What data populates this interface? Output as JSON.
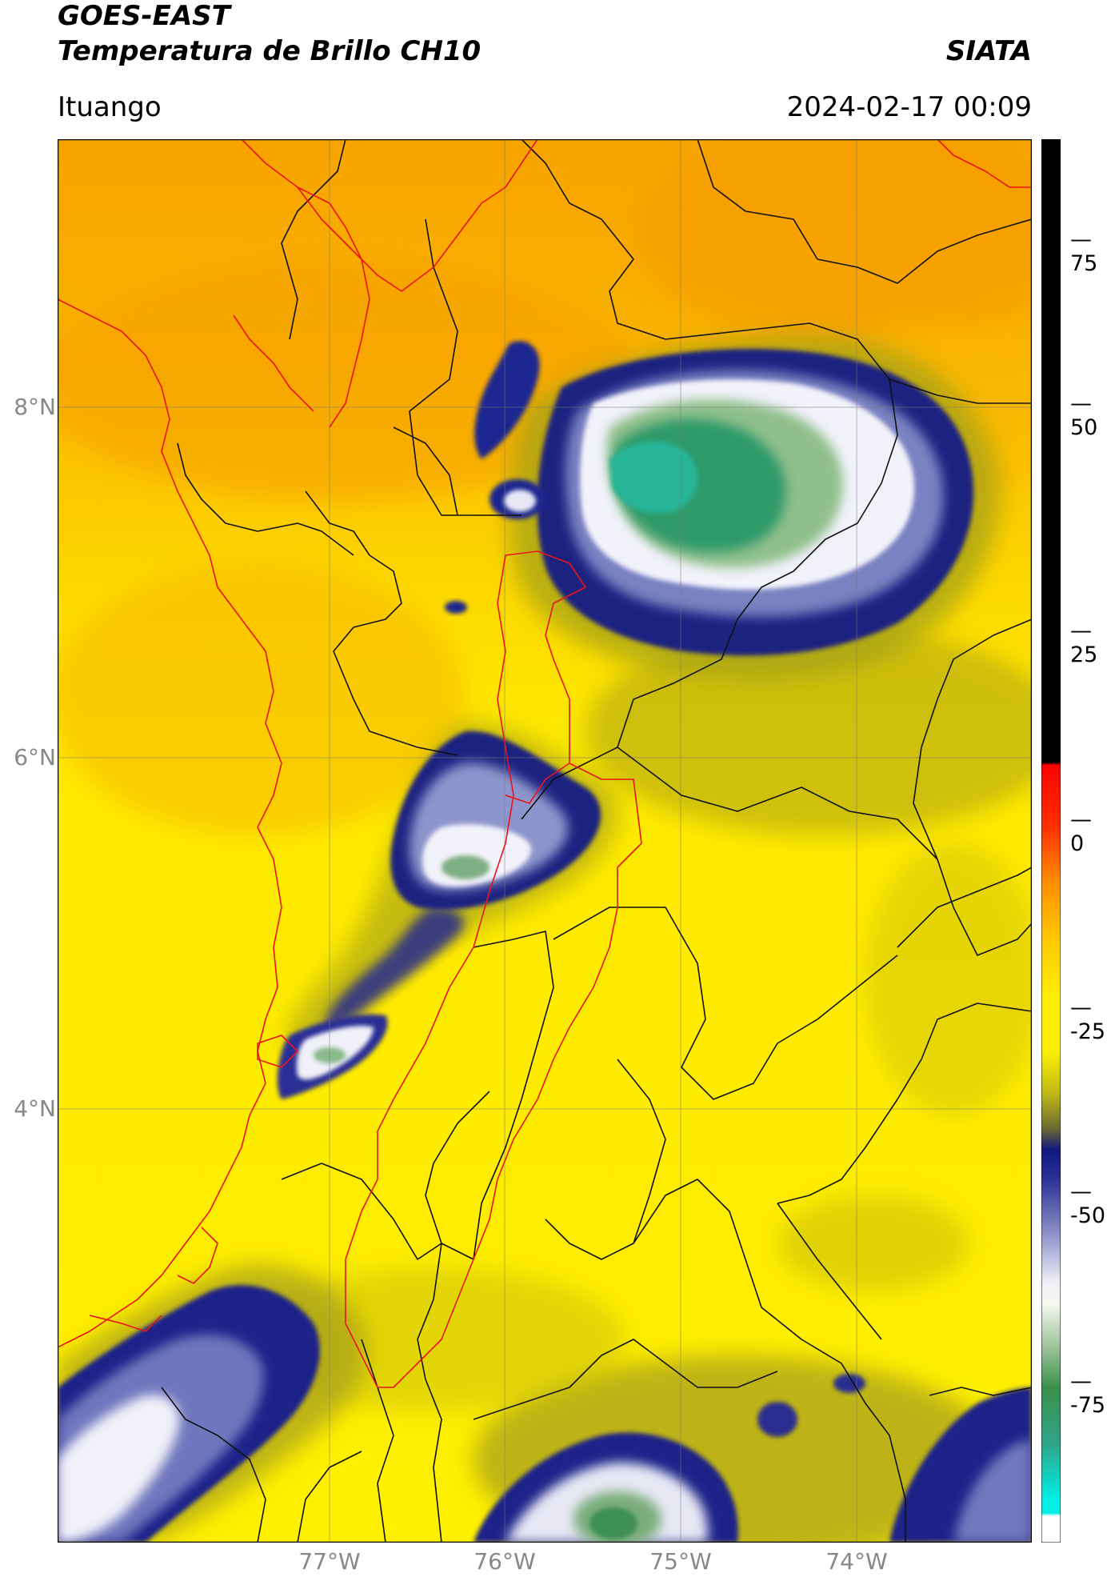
{
  "header": {
    "title_line1": "GOES-EAST",
    "title_line2": "Temperatura de Brillo CH10",
    "agency": "SIATA",
    "location": "Ituango",
    "datetime": "2024-02-17 00:09"
  },
  "map": {
    "latitude_labels": [
      "8°N",
      "6°N",
      "4°N"
    ],
    "longitude_labels": [
      "77°W",
      "76°W",
      "75°W",
      "74°W"
    ],
    "extent": {
      "lon_min": -78.55,
      "lon_max": -73.0,
      "lat_min": 1.55,
      "lat_max": 9.55
    },
    "gridlines": true,
    "colors": {
      "background_warm": "#f7a400",
      "midlevel": "#fef200",
      "cold": "#1a1f7a",
      "very_cold": "#f4f4fb",
      "coldest": "#2ca58a",
      "border_red": "#e8141a",
      "border_black": "#111111"
    }
  },
  "colorbar": {
    "tick_labels": [
      "75",
      "50",
      "25",
      "0",
      "-25",
      "-50",
      "-75"
    ],
    "tick_values": [
      75,
      50,
      25,
      0,
      -25,
      -50,
      -75
    ],
    "range": [
      -95,
      90
    ]
  }
}
